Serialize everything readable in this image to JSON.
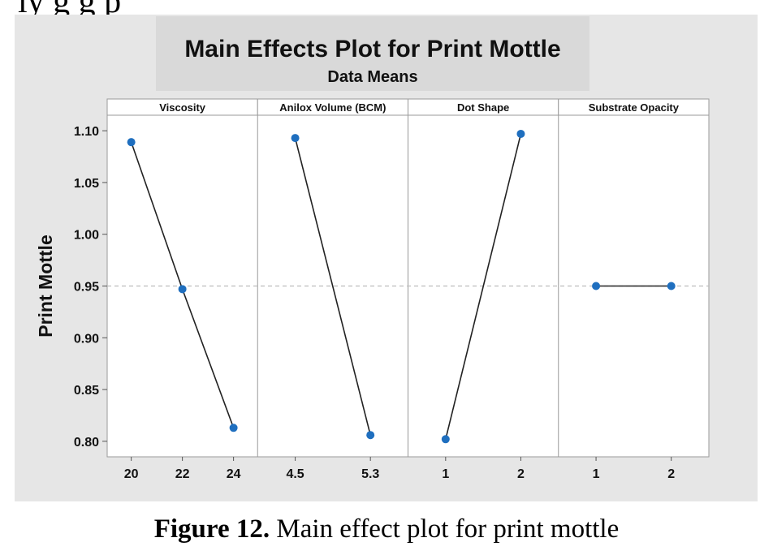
{
  "page": {
    "top_text_fragment": "ly     g g p",
    "caption_label": "Figure 12.",
    "caption_text": " Main effect plot for print mottle"
  },
  "colors": {
    "panel_bg": "#e6e6e6",
    "plot_bg": "#ffffff",
    "marker": "#1f6fbf",
    "line": "#222222",
    "reference_line": "#bdbdbd"
  },
  "chart_data": {
    "type": "line",
    "title": "Main Effects Plot for Print Mottle",
    "subtitle": "Data Means",
    "ylabel": "Print Mottle",
    "ylim": [
      0.785,
      1.115
    ],
    "yticks": [
      "1.10",
      "1.05",
      "1.00",
      "0.95",
      "0.90",
      "0.85",
      "0.80"
    ],
    "ytick_values": [
      1.1,
      1.05,
      1.0,
      0.95,
      0.9,
      0.85,
      0.8
    ],
    "reference_line": 0.95,
    "grid": false,
    "panels": [
      {
        "name": "Viscosity",
        "levels": [
          "20",
          "22",
          "24"
        ],
        "values": [
          1.089,
          0.947,
          0.813
        ]
      },
      {
        "name": "Anilox Volume (BCM)",
        "levels": [
          "4.5",
          "5.3"
        ],
        "values": [
          1.093,
          0.806
        ]
      },
      {
        "name": "Dot Shape",
        "levels": [
          "1",
          "2"
        ],
        "values": [
          0.802,
          1.097
        ]
      },
      {
        "name": "Substrate Opacity",
        "levels": [
          "1",
          "2"
        ],
        "values": [
          0.95,
          0.95
        ]
      }
    ]
  }
}
